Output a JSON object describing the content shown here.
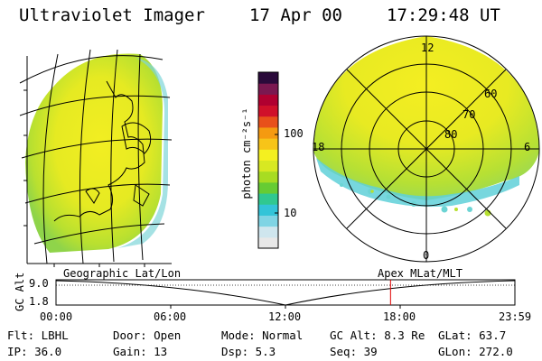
{
  "header": {
    "title": "Ultraviolet Imager",
    "date": "17 Apr 00",
    "time": "17:29:48 UT"
  },
  "colorbar": {
    "unit": "photon cm⁻²s⁻¹",
    "tick_high": "100",
    "tick_low": "10",
    "colors": [
      "#e8e8e8",
      "#cfe6ee",
      "#7fd4e4",
      "#33c4d8",
      "#30c890",
      "#66cc33",
      "#a8dc22",
      "#d8e822",
      "#f4f020",
      "#f7c418",
      "#f59a10",
      "#e8501a",
      "#d0102a",
      "#b00030",
      "#7a1850",
      "#2a0a3a"
    ]
  },
  "left_panel": {
    "label": "Geographic Lat/Lon"
  },
  "right_panel": {
    "label": "Apex MLat/MLT",
    "mlt_labels": {
      "top": "12",
      "left": "18",
      "right": "6",
      "bottom": "0"
    },
    "lat_labels": [
      "60",
      "70",
      "80"
    ]
  },
  "altitude_plot": {
    "ylabel": "GC Alt",
    "y_ticks": [
      "9.0",
      "1.8"
    ],
    "x_ticks": [
      "00:00",
      "06:00",
      "12:00",
      "18:00",
      "23:59"
    ],
    "current_time_fraction": 0.729,
    "marker_color": "#e00000"
  },
  "status": {
    "filter": "Flt: LBHL",
    "ip": "IP: 36.0",
    "door": "Door: Open",
    "gain": "Gain: 13",
    "mode": "Mode: Normal",
    "dsp": "Dsp:    5.3",
    "gc_alt": "GC Alt: 8.3 Re",
    "seq": "Seq: 39",
    "glat": "GLat:  63.7",
    "glon": "GLon: 272.0"
  }
}
